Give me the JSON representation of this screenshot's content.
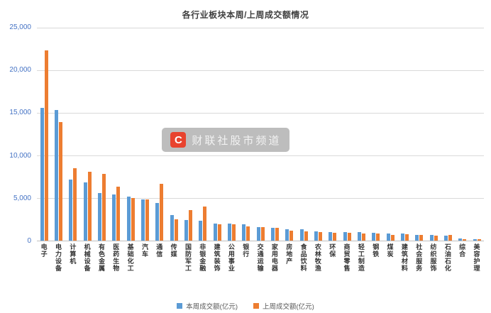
{
  "watermark": {
    "logo": "C",
    "text": "财联社股市频道"
  },
  "chart_data": {
    "type": "bar",
    "title": "各行业板块本周/上周成交额情况",
    "categories": [
      "电子",
      "电力设备",
      "计算机",
      "机械设备",
      "有色金属",
      "医药生物",
      "基础化工",
      "汽车",
      "通信",
      "传媒",
      "国防军工",
      "非银金融",
      "建筑装饰",
      "公用事业",
      "银行",
      "交通运输",
      "家用电器",
      "房地产",
      "食品饮料",
      "农林牧渔",
      "环保",
      "商贸零售",
      "轻工制造",
      "钢铁",
      "煤炭",
      "建筑材料",
      "社会服务",
      "纺织服饰",
      "石油石化",
      "综合",
      "美容护理"
    ],
    "series": [
      {
        "name": "本周成交额(亿元)",
        "color": "#5B9BD5",
        "values": [
          15600,
          15300,
          7200,
          6800,
          5600,
          5400,
          5200,
          4800,
          4400,
          3000,
          2400,
          2300,
          2000,
          2000,
          1900,
          1600,
          1500,
          1300,
          1300,
          1100,
          1000,
          1000,
          1000,
          900,
          800,
          800,
          700,
          650,
          600,
          250,
          200
        ]
      },
      {
        "name": "上周成交额(亿元)",
        "color": "#ED7D31",
        "values": [
          22300,
          13900,
          8500,
          8100,
          7800,
          6300,
          5000,
          4800,
          6700,
          2500,
          3600,
          4000,
          1900,
          1900,
          1700,
          1600,
          1500,
          1200,
          1100,
          1000,
          900,
          900,
          850,
          800,
          700,
          750,
          650,
          600,
          700,
          200,
          150
        ]
      }
    ],
    "xlabel": "",
    "ylabel": "",
    "ylim": [
      0,
      25000
    ],
    "ytick_labels": [
      "25,000",
      "20,000",
      "15,000",
      "10,000",
      "5,000",
      "0"
    ],
    "grid": true,
    "legend_position": "bottom"
  }
}
